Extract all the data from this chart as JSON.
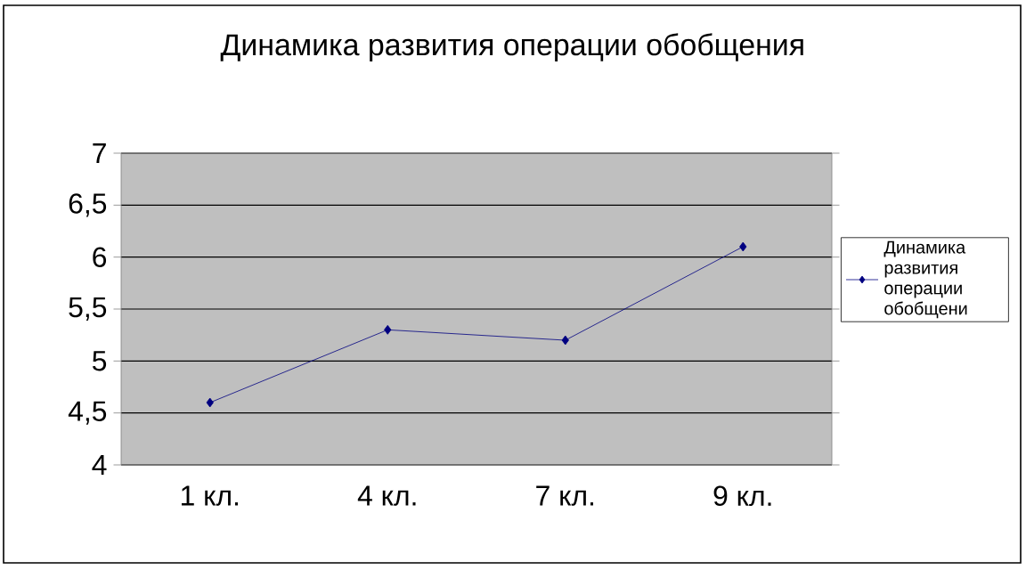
{
  "chart_data": {
    "type": "line",
    "title": "Динамика развития операции обобщения",
    "categories": [
      "1 кл.",
      "4 кл.",
      "7 кл.",
      "9 кл."
    ],
    "series": [
      {
        "name": "Динамика развития операции обобщени",
        "color": "#000080",
        "values": [
          4.6,
          5.3,
          5.2,
          6.1
        ]
      }
    ],
    "ylim": [
      4,
      7
    ],
    "yticks": [
      4,
      {
        "value": 4.5,
        "label": "4,5"
      },
      5,
      {
        "value": 5.5,
        "label": "5,5"
      },
      6,
      {
        "value": 6.5,
        "label": "6,5"
      },
      7
    ],
    "grid": "y",
    "legend": "right",
    "marker": "diamond",
    "line_style": "solid"
  }
}
